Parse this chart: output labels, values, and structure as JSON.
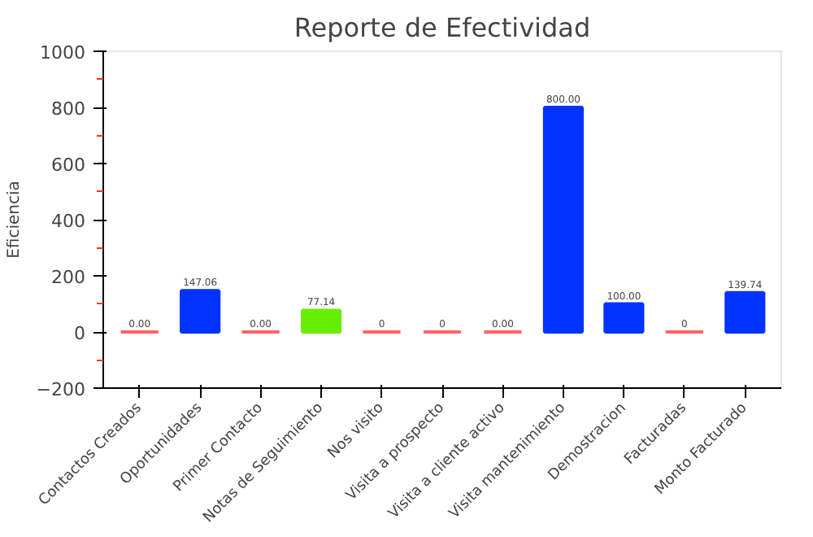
{
  "chart_data": {
    "type": "bar",
    "title": "Reporte de Efectividad",
    "ylabel": "Eficiencia",
    "categories": [
      "Contactos Creados",
      "Oportunidades",
      "Primer Contacto",
      "Notas de Seguimiento",
      "Nos visito",
      "Visita a prospecto",
      "Visita a cliente activo",
      "Visita mantenimiento",
      "Demostracion",
      "Facturadas",
      "Monto Facturado"
    ],
    "values": [
      0,
      147.06,
      0,
      77.14,
      0,
      0,
      0,
      800,
      100,
      0,
      139.74
    ],
    "colors": [
      "#ff6666",
      "#0033ff",
      "#ff6666",
      "#66ee00",
      "#ff6666",
      "#ff6666",
      "#ff6666",
      "#0033ff",
      "#0033ff",
      "#ff6666",
      "#0033ff"
    ],
    "value_labels": [
      "0.00",
      "147.06",
      "0.00",
      "77.14",
      "0",
      "0",
      "0.00",
      "800.00",
      "100.00",
      "0",
      "139.74"
    ],
    "ylim": [
      -200,
      1000
    ],
    "yticks": [
      -200,
      0,
      200,
      400,
      600,
      800,
      1000
    ],
    "grid": false
  }
}
